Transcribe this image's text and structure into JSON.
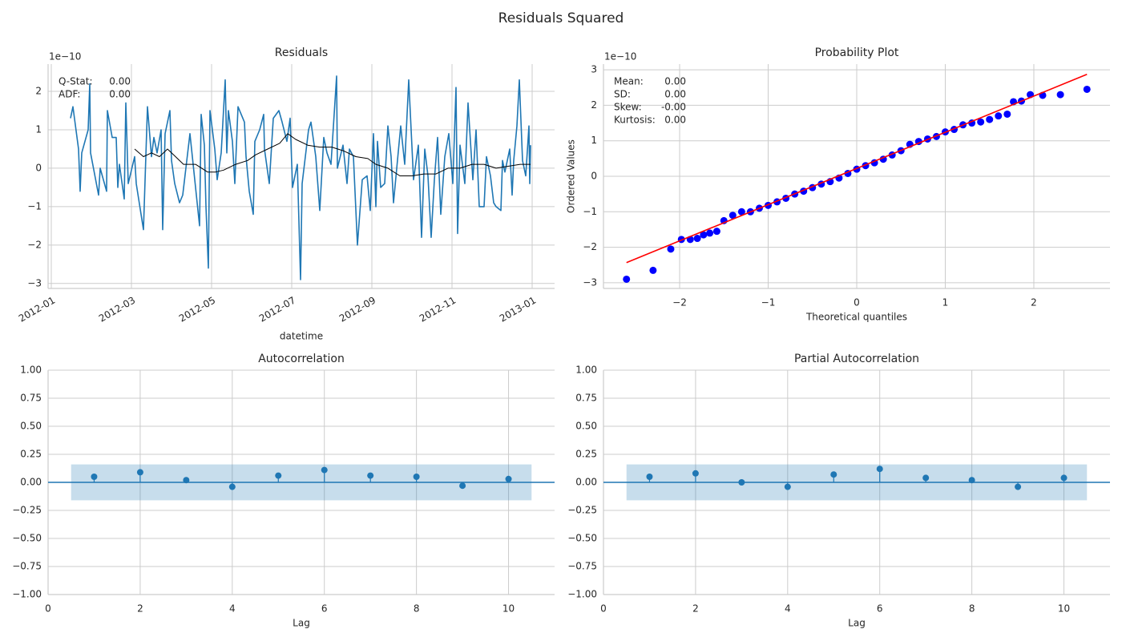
{
  "title": "Residuals Squared",
  "chart_data": [
    {
      "type": "line",
      "title": "Residuals",
      "xlabel": "datetime",
      "y_offset_label": "1e−10",
      "annotations": [
        {
          "label": "Q-Stat:",
          "value": "0.00"
        },
        {
          "label": "ADF:",
          "value": "0.00"
        }
      ],
      "xlim": [
        -0.08,
        12.56
      ],
      "ylim": [
        -3.13,
        2.71
      ],
      "xticks": [
        {
          "value": 0,
          "label": "2012-01"
        },
        {
          "value": 2,
          "label": "2012-03"
        },
        {
          "value": 4,
          "label": "2012-05"
        },
        {
          "value": 6,
          "label": "2012-07"
        },
        {
          "value": 8,
          "label": "2012-09"
        },
        {
          "value": 10,
          "label": "2012-11"
        },
        {
          "value": 12,
          "label": "2013-01"
        }
      ],
      "yticks": [
        {
          "value": -3,
          "label": "−3"
        },
        {
          "value": -2,
          "label": "−2"
        },
        {
          "value": -1,
          "label": "−1"
        },
        0,
        1,
        2
      ],
      "grid": true,
      "series": [
        {
          "color": "#1f77b4",
          "width": 1.6,
          "x": [
            0.48,
            0.54,
            0.68,
            0.72,
            0.76,
            0.92,
            0.96,
            0.98,
            1.18,
            1.22,
            1.38,
            1.4,
            1.52,
            1.62,
            1.66,
            1.7,
            1.82,
            1.86,
            1.92,
            2.08,
            2.12,
            2.3,
            2.4,
            2.5,
            2.56,
            2.64,
            2.74,
            2.78,
            2.84,
            2.96,
            3.0,
            3.08,
            3.2,
            3.28,
            3.46,
            3.52,
            3.7,
            3.74,
            3.82,
            3.86,
            3.92,
            3.96,
            4.08,
            4.14,
            4.24,
            4.34,
            4.38,
            4.42,
            4.52,
            4.58,
            4.66,
            4.82,
            4.86,
            4.94,
            5.04,
            5.08,
            5.2,
            5.3,
            5.32,
            5.44,
            5.54,
            5.68,
            5.76,
            5.88,
            5.96,
            6.02,
            6.14,
            6.22,
            6.26,
            6.42,
            6.48,
            6.6,
            6.7,
            6.8,
            6.88,
            6.98,
            7.12,
            7.14,
            7.28,
            7.38,
            7.44,
            7.54,
            7.64,
            7.76,
            7.88,
            7.96,
            8.04,
            8.1,
            8.14,
            8.22,
            8.32,
            8.4,
            8.48,
            8.54,
            8.72,
            8.82,
            8.92,
            9.04,
            9.16,
            9.24,
            9.32,
            9.4,
            9.48,
            9.56,
            9.64,
            9.72,
            9.82,
            9.92,
            10.02,
            10.1,
            10.14,
            10.2,
            10.32,
            10.4,
            10.52,
            10.6,
            10.68,
            10.8,
            10.86,
            10.96,
            11.04,
            11.1,
            11.22,
            11.26,
            11.32,
            11.44,
            11.5,
            11.54,
            11.62,
            11.68,
            11.76,
            11.84,
            11.92,
            11.94,
            11.96
          ],
          "values": [
            1.3,
            1.6,
            0.5,
            -0.6,
            0.4,
            1.0,
            2.2,
            0.4,
            -0.7,
            0,
            -0.6,
            1.5,
            0.8,
            0.8,
            -0.5,
            0.1,
            -0.8,
            1.7,
            -0.4,
            0.3,
            -0.4,
            -1.6,
            1.6,
            0.3,
            0.8,
            0.4,
            1.0,
            -1.6,
            0.9,
            1.5,
            0.2,
            -0.4,
            -0.9,
            -0.7,
            0.9,
            0.3,
            -1.5,
            1.4,
            0.6,
            -1.0,
            -2.6,
            1.5,
            0.5,
            -0.3,
            0.4,
            2.3,
            0.4,
            1.5,
            0.7,
            -0.4,
            1.6,
            1.2,
            0.3,
            -0.6,
            -1.2,
            0.7,
            1.0,
            1.4,
            0.5,
            -0.4,
            1.3,
            1.5,
            1.2,
            0.7,
            1.3,
            -0.5,
            0.1,
            -2.9,
            -0.4,
            1.0,
            1.2,
            0.3,
            -1.1,
            0.8,
            0.4,
            0.1,
            2.4,
            0.0,
            0.6,
            -0.4,
            0.5,
            0.3,
            -2.0,
            -0.3,
            -0.2,
            -1.1,
            0.9,
            -1.0,
            0.7,
            -0.5,
            -0.4,
            1.1,
            0.3,
            -0.9,
            1.1,
            0.1,
            2.3,
            -0.3,
            0.6,
            -1.8,
            0.5,
            -0.2,
            -1.8,
            -0.3,
            0.8,
            -1.2,
            0.3,
            0.9,
            -0.4,
            2.1,
            -1.7,
            0.6,
            -0.4,
            1.7,
            -0.3,
            1.0,
            -1.0,
            -1.0,
            0.3,
            -0.2,
            -0.9,
            -1.0,
            -1.1,
            0.2,
            -0.1,
            0.5,
            -0.7,
            0.2,
            1.1,
            2.3,
            0.2,
            -0.2,
            1.1,
            -0.4,
            0.6
          ]
        },
        {
          "color": "#000000",
          "width": 1,
          "x": [
            2.08,
            2.3,
            2.5,
            2.7,
            2.9,
            3.1,
            3.3,
            3.6,
            3.9,
            4.1,
            4.3,
            4.6,
            4.9,
            5.1,
            5.4,
            5.7,
            5.9,
            6.1,
            6.4,
            6.7,
            7.0,
            7.3,
            7.6,
            7.9,
            8.1,
            8.4,
            8.7,
            9.0,
            9.3,
            9.6,
            9.9,
            10.2,
            10.5,
            10.8,
            11.1,
            11.4,
            11.7,
            11.96
          ],
          "values": [
            0.5,
            0.3,
            0.4,
            0.3,
            0.5,
            0.3,
            0.1,
            0.1,
            -0.1,
            -0.1,
            -0.05,
            0.1,
            0.2,
            0.35,
            0.5,
            0.65,
            0.9,
            0.75,
            0.6,
            0.55,
            0.55,
            0.45,
            0.3,
            0.25,
            0.1,
            0.0,
            -0.2,
            -0.2,
            -0.15,
            -0.15,
            0.0,
            0.0,
            0.1,
            0.1,
            0.0,
            0.05,
            0.1,
            0.1
          ]
        }
      ]
    },
    {
      "type": "scatter",
      "title": "Probability Plot",
      "xlabel": "Theoretical quantiles",
      "ylabel": "Ordered Values",
      "y_offset_label": "1e−10",
      "annotations": [
        {
          "label": "Mean:",
          "value": "0.00"
        },
        {
          "label": "SD:",
          "value": "0.00"
        },
        {
          "label": "Skew:",
          "value": "-0.00"
        },
        {
          "label": "Kurtosis:",
          "value": "0.00"
        }
      ],
      "xlim": [
        -2.86,
        2.86
      ],
      "ylim": [
        -3.16,
        3.16
      ],
      "xticks": [
        {
          "value": -2,
          "label": "−2"
        },
        {
          "value": -1,
          "label": "−1"
        },
        0,
        1,
        2
      ],
      "yticks": [
        {
          "value": -3,
          "label": "−3"
        },
        {
          "value": -2,
          "label": "−2"
        },
        {
          "value": -1,
          "label": "−1"
        },
        0,
        1,
        2,
        3
      ],
      "grid": true,
      "series": [
        {
          "color": "#0000ff",
          "style": "markers",
          "x": [
            -2.6,
            -2.3,
            -2.1,
            -1.98,
            -1.88,
            -1.8,
            -1.73,
            -1.66,
            -1.58,
            -1.5,
            -1.4,
            -1.3,
            -1.2,
            -1.1,
            -1.0,
            -0.9,
            -0.8,
            -0.7,
            -0.6,
            -0.5,
            -0.4,
            -0.3,
            -0.2,
            -0.1,
            0,
            0.1,
            0.2,
            0.3,
            0.4,
            0.5,
            0.6,
            0.7,
            0.8,
            0.9,
            1.0,
            1.1,
            1.2,
            1.3,
            1.4,
            1.5,
            1.6,
            1.7,
            1.77,
            1.86,
            1.96,
            2.1,
            2.3,
            2.6
          ],
          "values": [
            -2.9,
            -2.65,
            -2.05,
            -1.78,
            -1.78,
            -1.75,
            -1.65,
            -1.6,
            -1.55,
            -1.25,
            -1.1,
            -1.0,
            -1.0,
            -0.9,
            -0.82,
            -0.72,
            -0.62,
            -0.5,
            -0.42,
            -0.32,
            -0.22,
            -0.15,
            -0.05,
            0.08,
            0.2,
            0.3,
            0.38,
            0.48,
            0.6,
            0.72,
            0.9,
            0.98,
            1.05,
            1.12,
            1.25,
            1.32,
            1.45,
            1.5,
            1.53,
            1.6,
            1.7,
            1.75,
            2.1,
            2.12,
            2.3,
            2.28,
            2.3,
            2.45
          ]
        },
        {
          "color": "#ff0000",
          "style": "line",
          "x": [
            -2.6,
            2.6
          ],
          "values": [
            -2.43,
            2.87
          ]
        }
      ]
    },
    {
      "type": "stem",
      "title": "Autocorrelation",
      "xlabel": "Lag",
      "color": "#1f77b4",
      "xlim": [
        0,
        11
      ],
      "ylim": [
        -1,
        1
      ],
      "xticks": [
        0,
        2,
        4,
        6,
        8,
        10
      ],
      "yticks": [
        {
          "value": -1,
          "label": "−1.00"
        },
        {
          "value": -0.75,
          "label": "−0.75"
        },
        {
          "value": -0.5,
          "label": "−0.50"
        },
        {
          "value": -0.25,
          "label": "−0.25"
        },
        {
          "value": 0,
          "label": "0.00"
        },
        {
          "value": 0.25,
          "label": "0.25"
        },
        {
          "value": 0.5,
          "label": "0.50"
        },
        {
          "value": 0.75,
          "label": "0.75"
        },
        {
          "value": 1,
          "label": "1.00"
        }
      ],
      "grid": true,
      "band_x": [
        0.5,
        10.5
      ],
      "confidence_interval": [
        -0.16,
        0.16
      ],
      "x": [
        1,
        2,
        3,
        4,
        5,
        6,
        7,
        8,
        9,
        10
      ],
      "values": [
        0.05,
        0.09,
        0.02,
        -0.04,
        0.06,
        0.11,
        0.06,
        0.05,
        -0.03,
        0.03
      ]
    },
    {
      "type": "stem",
      "title": "Partial Autocorrelation",
      "xlabel": "Lag",
      "color": "#1f77b4",
      "xlim": [
        0,
        11
      ],
      "ylim": [
        -1,
        1
      ],
      "xticks": [
        0,
        2,
        4,
        6,
        8,
        10
      ],
      "yticks": [
        {
          "value": -1,
          "label": "−1.00"
        },
        {
          "value": -0.75,
          "label": "−0.75"
        },
        {
          "value": -0.5,
          "label": "−0.50"
        },
        {
          "value": -0.25,
          "label": "−0.25"
        },
        {
          "value": 0,
          "label": "0.00"
        },
        {
          "value": 0.25,
          "label": "0.25"
        },
        {
          "value": 0.5,
          "label": "0.50"
        },
        {
          "value": 0.75,
          "label": "0.75"
        },
        {
          "value": 1,
          "label": "1.00"
        }
      ],
      "grid": true,
      "band_x": [
        0.5,
        10.5
      ],
      "confidence_interval": [
        -0.16,
        0.16
      ],
      "x": [
        1,
        2,
        3,
        4,
        5,
        6,
        7,
        8,
        9,
        10
      ],
      "values": [
        0.05,
        0.08,
        0.0,
        -0.04,
        0.07,
        0.12,
        0.04,
        0.02,
        -0.04,
        0.04
      ]
    }
  ]
}
